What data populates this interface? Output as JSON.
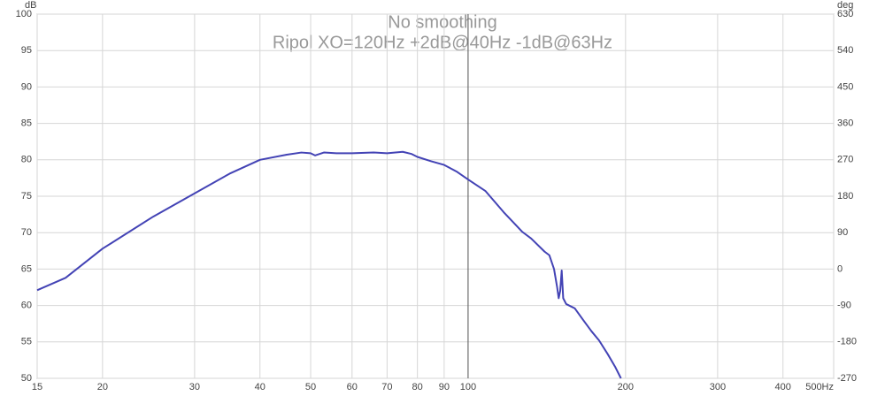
{
  "chart_data": {
    "type": "line",
    "title": "No smoothing",
    "subtitle": "Ripol XO=120Hz +2dB@40Hz -1dB@63Hz",
    "y_label": "dB",
    "y2_label": "deg",
    "log_x": true,
    "grid": true,
    "cursor_x": 100,
    "xlim": [
      15,
      500
    ],
    "xticks": [
      15,
      20,
      30,
      40,
      50,
      60,
      70,
      80,
      90,
      100,
      200,
      300,
      400,
      {
        "value": 500,
        "label": "500Hz"
      }
    ],
    "ylim": [
      50,
      100
    ],
    "yticks": [
      50,
      55,
      60,
      65,
      70,
      75,
      80,
      85,
      90,
      95,
      100
    ],
    "y2lim": [
      -270,
      630
    ],
    "y2ticks": [
      -270,
      -180,
      -90,
      0,
      90,
      180,
      270,
      360,
      450,
      540,
      630
    ],
    "x": [
      15,
      17,
      20,
      25,
      30,
      35,
      40,
      45,
      48,
      50,
      51,
      53,
      56,
      60,
      66,
      70,
      75,
      78,
      80,
      85,
      90,
      95,
      100,
      108,
      117,
      127,
      132,
      140,
      143,
      146,
      148,
      149,
      150,
      151,
      152,
      154,
      157,
      160,
      166,
      172,
      178,
      185,
      191,
      196
    ],
    "series": [
      {
        "color": "#4343b5",
        "values": [
          62.1,
          63.8,
          67.8,
          72.2,
          75.4,
          78.1,
          80.0,
          80.7,
          81.0,
          80.9,
          80.6,
          81.0,
          80.9,
          80.9,
          81.0,
          80.9,
          81.1,
          80.8,
          80.4,
          79.8,
          79.3,
          78.4,
          77.3,
          75.7,
          72.8,
          70.1,
          69.2,
          67.4,
          66.9,
          65.0,
          62.5,
          61.0,
          62.0,
          64.8,
          61.0,
          60.2,
          59.9,
          59.6,
          58.0,
          56.5,
          55.2,
          53.3,
          51.6,
          50.0
        ]
      }
    ]
  }
}
